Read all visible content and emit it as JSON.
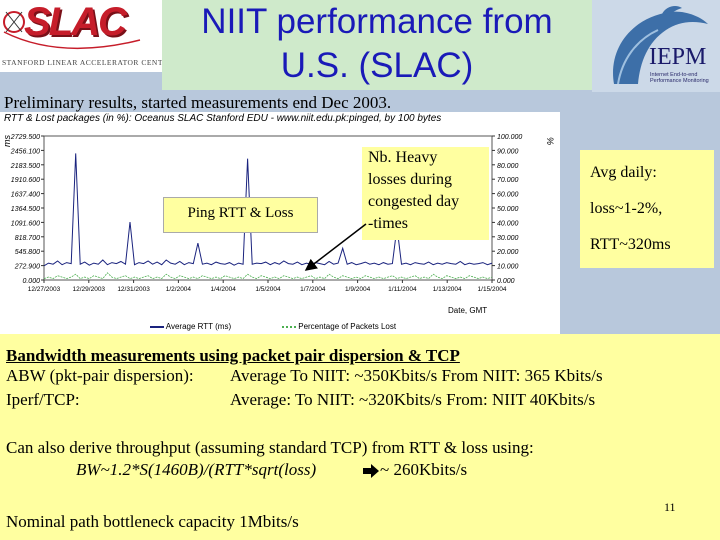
{
  "header": {
    "slac_logo_text": "SLAC",
    "slac_subtitle": "STANFORD LINEAR ACCELERATOR CENTER",
    "title_line1": "NIIT performance from",
    "title_line2": "U.S. (SLAC)",
    "iepm_logo_text": "IEPM",
    "iepm_subtitle_line1": "Internet End-to-end",
    "iepm_subtitle_line2": "Performance Monitoring"
  },
  "preliminary": "Preliminary results, started measurements end Dec 2003.",
  "chart_data": {
    "type": "line",
    "title": "RTT & Lost packages (in %): Oceanus SLAC Stanford EDU - www.niit.edu.pk:pinged, by 100 bytes",
    "ylabel": "ms",
    "y2label": "%",
    "xlabel": "Date, GMT",
    "yticks": [
      "2729.500",
      "2456.100",
      "2183.500",
      "1910.600",
      "1637.400",
      "1364.500",
      "1091.600",
      "818.700",
      "545.800",
      "272.900",
      "0.000"
    ],
    "y2ticks": [
      "100.000",
      "90.000",
      "80.000",
      "70.000",
      "60.000",
      "50.000",
      "40.000",
      "30.000",
      "20.000",
      "10.000",
      "0.000"
    ],
    "ylim": [
      0,
      2729.5
    ],
    "y2lim": [
      0,
      100
    ],
    "xticks": [
      "12/27/2003",
      "12/29/2003",
      "12/31/2003",
      "1/2/2004",
      "1/4/2004",
      "1/5/2004",
      "1/7/2004",
      "1/9/2004",
      "1/11/2004",
      "1/13/2004",
      "1/15/2004"
    ],
    "series": [
      {
        "name": "Average RTT (ms)",
        "color": "#1a237e",
        "axis": "left",
        "values": [
          270,
          320,
          300,
          360,
          290,
          330,
          310,
          2400,
          300,
          340,
          280,
          320,
          300,
          380,
          290,
          330,
          310,
          350,
          300,
          1100,
          290,
          330,
          310,
          360,
          300,
          340,
          290,
          380,
          320,
          300,
          350,
          290,
          330,
          310,
          700,
          300,
          320,
          290,
          340,
          310,
          300,
          330,
          280,
          320,
          300,
          2300,
          300,
          320,
          310,
          340,
          290,
          330,
          300,
          360,
          310,
          300,
          340,
          290,
          320,
          300,
          330,
          310,
          290,
          350,
          300,
          320,
          600,
          300,
          330,
          290,
          310,
          340,
          300,
          320,
          290,
          330,
          300,
          310,
          1000,
          300,
          320,
          290,
          330,
          310,
          300,
          340,
          290,
          320,
          300,
          330,
          310,
          300,
          350,
          290,
          320,
          300,
          310,
          330,
          290,
          320
        ]
      },
      {
        "name": "Percentage of Packets Lost",
        "color": "#4caf50",
        "axis": "right",
        "values": [
          1,
          2,
          1,
          3,
          2,
          1,
          2,
          4,
          1,
          2,
          1,
          3,
          2,
          1,
          5,
          2,
          1,
          2,
          3,
          1,
          2,
          1,
          2,
          3,
          1,
          2,
          1,
          4,
          2,
          1,
          3,
          2,
          1,
          2,
          1,
          3,
          2,
          1,
          2,
          1,
          3,
          2,
          1,
          2,
          1,
          4,
          2,
          1,
          3,
          2,
          1,
          2,
          1,
          3,
          2,
          1,
          2,
          1,
          2,
          3,
          1,
          2,
          1,
          4,
          2,
          1,
          3,
          2,
          1,
          2,
          1,
          3,
          2,
          1,
          2,
          1,
          2,
          3,
          1,
          2,
          1,
          2,
          3,
          1,
          2,
          1,
          4,
          2,
          1,
          3,
          2,
          1,
          2,
          1,
          3,
          2,
          1,
          2,
          1,
          2
        ]
      }
    ]
  },
  "callouts": {
    "ping": "Ping RTT & Loss",
    "heavy": [
      "Nb. Heavy",
      "losses during",
      "congested day",
      "-times"
    ],
    "avg": [
      "Avg daily:",
      "loss~1-2%,",
      "RTT~320ms"
    ]
  },
  "bandwidth": {
    "title": "Bandwidth measurements using packet pair dispersion & TCP",
    "abw_label": "ABW (pkt-pair dispersion):",
    "abw_values": "Average  To NIIT: ~350Kbits/s   From NIIT: 365 Kbits/s",
    "iperf_label": "Iperf/TCP:",
    "iperf_values": "Average: To NIIT: ~320Kbits/s   From: NIIT 40Kbits/s",
    "derive": "Can also derive throughput (assuming standard TCP) from RTT & loss using:",
    "formula": "BW~1.2*S(1460B)/(RTT*sqrt(loss)",
    "result": "~ 260Kbits/s",
    "nominal": "Nominal path bottleneck capacity 1Mbits/s",
    "page_number": "11"
  }
}
